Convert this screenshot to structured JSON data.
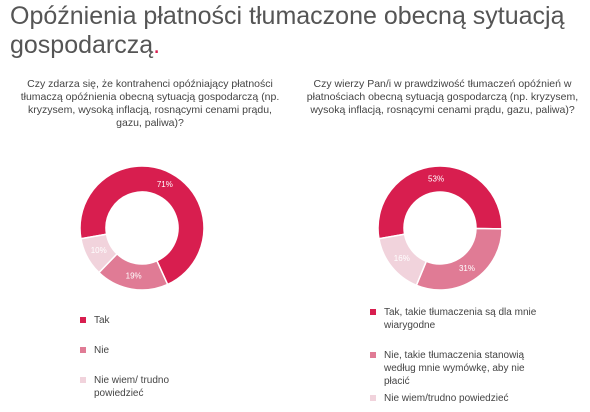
{
  "title": "Opóźnienia płatności tłumaczone obecną sytuacją gospodarczą",
  "title_mark": ".",
  "chart_data": [
    {
      "type": "donut",
      "title": "Czy zdarza się, że kontrahenci opóźniający płatności tłumaczą opóźnienia obecną sytuacją gospodarczą (np. kryzysem, wysoką inflacją, rosnącymi cenami prądu, gazu, paliwa)?",
      "categories": [
        "Tak",
        "Nie",
        "Nie wiem/ trudno powiedzieć"
      ],
      "values": [
        71,
        19,
        10
      ],
      "value_labels": [
        "71%",
        "19%",
        "10%"
      ],
      "colors": [
        "#d81e4f",
        "#e07b95",
        "#f1d3dc"
      ]
    },
    {
      "type": "donut",
      "title": "Czy wierzy Pan/i w prawdziwość tłumaczeń opóźnień w płatnościach obecną sytuacją gospodarczą (np. kryzysem, wysoką inflacją, rosnącymi cenami prądu, gazu, paliwa)?",
      "categories": [
        "Tak, takie tłumaczenia są dla mnie wiarygodne",
        "Nie, takie tłumaczenia stanowią według mnie wymówkę, aby nie płacić",
        "Nie wiem/trudno powiedzieć"
      ],
      "values": [
        53,
        31,
        16
      ],
      "value_labels": [
        "53%",
        "31%",
        "16%"
      ],
      "colors": [
        "#d81e4f",
        "#e07b95",
        "#f1d3dc"
      ]
    }
  ]
}
